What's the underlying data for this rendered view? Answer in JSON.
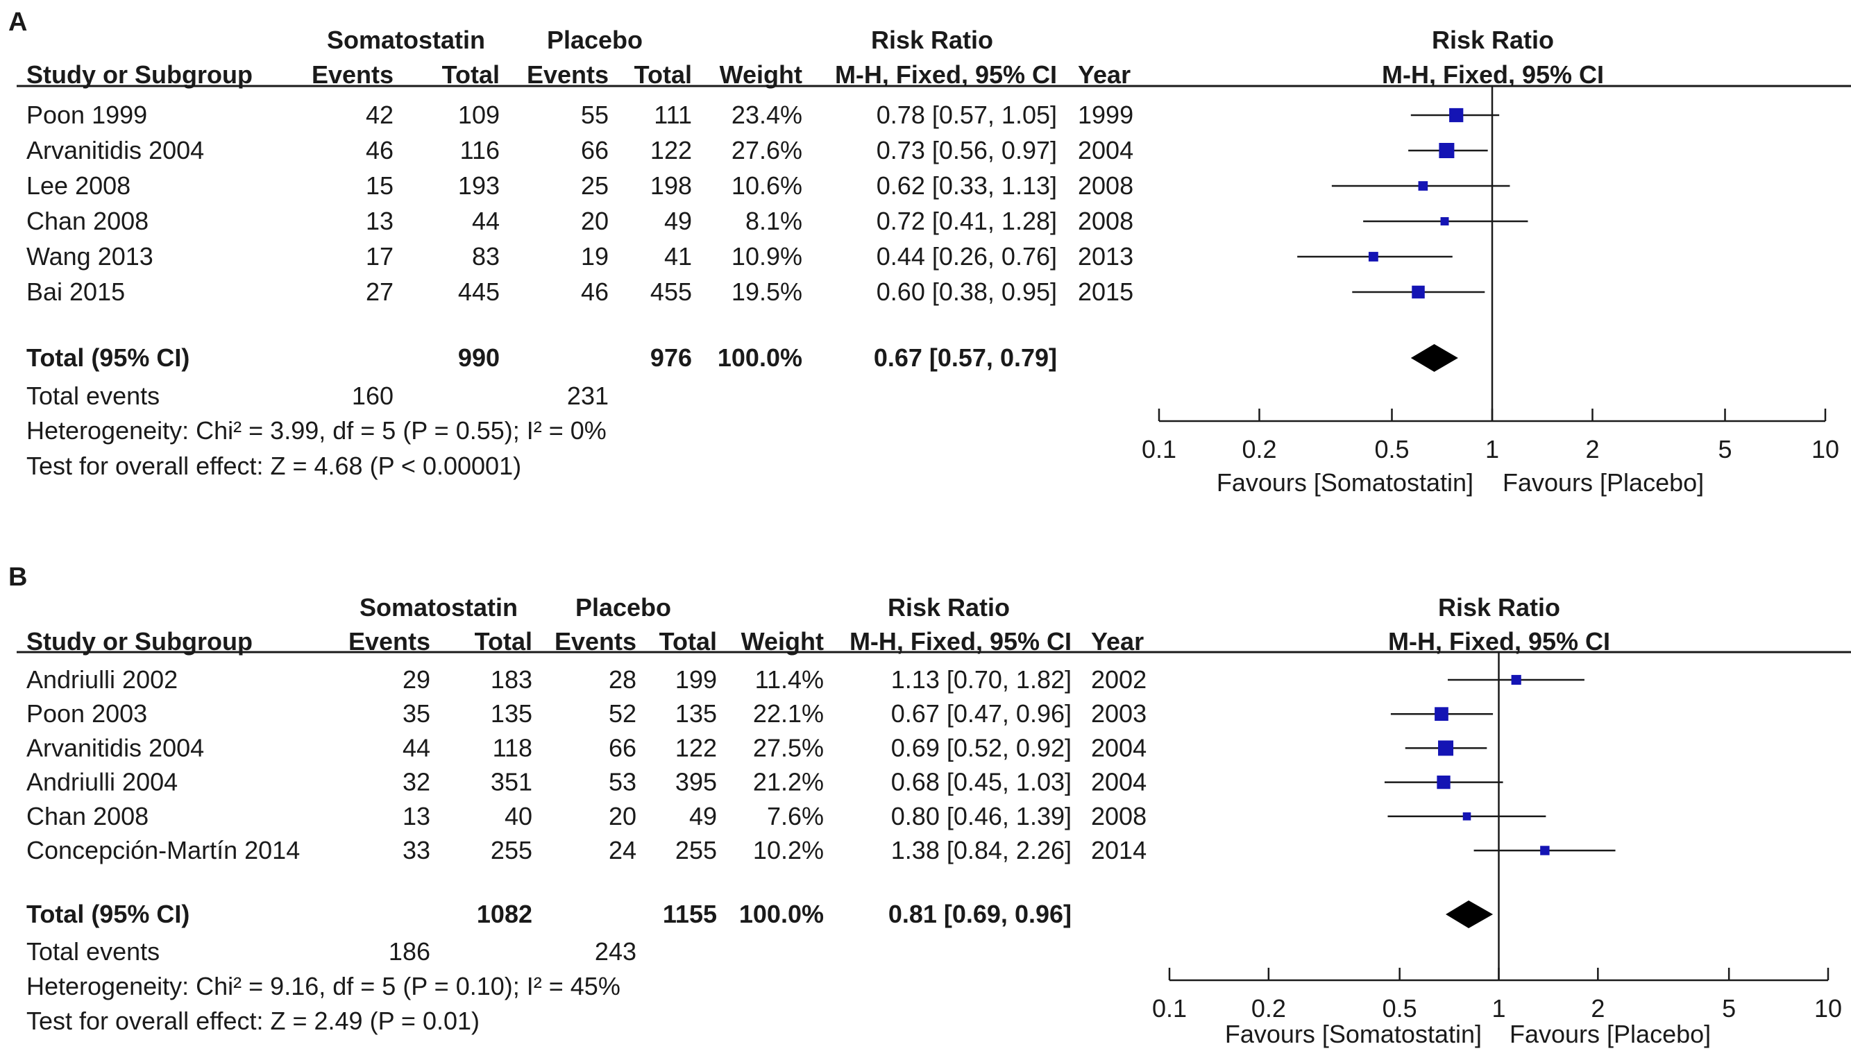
{
  "chart_data": [
    {
      "type": "forest",
      "panel": "A",
      "group_labels": {
        "exp": "Somatostatin",
        "ctl": "Placebo"
      },
      "columns": {
        "study": "Study or Subgroup",
        "events": "Events",
        "total": "Total",
        "weight": "Weight",
        "rr_title": "Risk Ratio",
        "rr_method": "M-H, Fixed, 95% CI",
        "year": "Year"
      },
      "studies": [
        {
          "name": "Poon 1999",
          "e_events": "42",
          "e_total": "109",
          "c_events": "55",
          "c_total": "111",
          "weight": "23.4%",
          "ci_text": "0.78 [0.57, 1.05]",
          "year": "1999",
          "rr": 0.78,
          "lo": 0.57,
          "hi": 1.05,
          "w": 23.4
        },
        {
          "name": "Arvanitidis 2004",
          "e_events": "46",
          "e_total": "116",
          "c_events": "66",
          "c_total": "122",
          "weight": "27.6%",
          "ci_text": "0.73 [0.56, 0.97]",
          "year": "2004",
          "rr": 0.73,
          "lo": 0.56,
          "hi": 0.97,
          "w": 27.6
        },
        {
          "name": "Lee 2008",
          "e_events": "15",
          "e_total": "193",
          "c_events": "25",
          "c_total": "198",
          "weight": "10.6%",
          "ci_text": "0.62 [0.33, 1.13]",
          "year": "2008",
          "rr": 0.62,
          "lo": 0.33,
          "hi": 1.13,
          "w": 10.6
        },
        {
          "name": "Chan 2008",
          "e_events": "13",
          "e_total": "44",
          "c_events": "20",
          "c_total": "49",
          "weight": "8.1%",
          "ci_text": "0.72 [0.41, 1.28]",
          "year": "2008",
          "rr": 0.72,
          "lo": 0.41,
          "hi": 1.28,
          "w": 8.1
        },
        {
          "name": "Wang 2013",
          "e_events": "17",
          "e_total": "83",
          "c_events": "19",
          "c_total": "41",
          "weight": "10.9%",
          "ci_text": "0.44 [0.26, 0.76]",
          "year": "2013",
          "rr": 0.44,
          "lo": 0.26,
          "hi": 0.76,
          "w": 10.9
        },
        {
          "name": "Bai 2015",
          "e_events": "27",
          "e_total": "445",
          "c_events": "46",
          "c_total": "455",
          "weight": "19.5%",
          "ci_text": "0.60 [0.38, 0.95]",
          "year": "2015",
          "rr": 0.6,
          "lo": 0.38,
          "hi": 0.95,
          "w": 19.5
        }
      ],
      "total": {
        "label": "Total (95% CI)",
        "e_total": "990",
        "c_total": "976",
        "weight": "100.0%",
        "ci_text": "0.67 [0.57, 0.79]",
        "rr": 0.67,
        "lo": 0.57,
        "hi": 0.79
      },
      "total_events": {
        "label": "Total events",
        "exp": "160",
        "ctl": "231"
      },
      "heterogeneity": "Heterogeneity: Chi² = 3.99, df = 5 (P = 0.55); I² = 0%",
      "overall_effect": "Test for overall effect: Z = 4.68 (P < 0.00001)",
      "x_scale": "log",
      "xlim": [
        0.1,
        10
      ],
      "ticks": [
        0.1,
        0.2,
        0.5,
        1,
        2,
        5,
        10
      ],
      "tick_labels": [
        "0.1",
        "0.2",
        "0.5",
        "1",
        "2",
        "5",
        "10"
      ],
      "favours_left": "Favours [Somatostatin]",
      "favours_right": "Favours [Placebo]"
    },
    {
      "type": "forest",
      "panel": "B",
      "group_labels": {
        "exp": "Somatostatin",
        "ctl": "Placebo"
      },
      "columns": {
        "study": "Study or Subgroup",
        "events": "Events",
        "total": "Total",
        "weight": "Weight",
        "rr_title": "Risk Ratio",
        "rr_method": "M-H, Fixed, 95% CI",
        "year": "Year"
      },
      "studies": [
        {
          "name": "Andriulli 2002",
          "e_events": "29",
          "e_total": "183",
          "c_events": "28",
          "c_total": "199",
          "weight": "11.4%",
          "ci_text": "1.13 [0.70, 1.82]",
          "year": "2002",
          "rr": 1.13,
          "lo": 0.7,
          "hi": 1.82,
          "w": 11.4
        },
        {
          "name": "Poon 2003",
          "e_events": "35",
          "e_total": "135",
          "c_events": "52",
          "c_total": "135",
          "weight": "22.1%",
          "ci_text": "0.67 [0.47, 0.96]",
          "year": "2003",
          "rr": 0.67,
          "lo": 0.47,
          "hi": 0.96,
          "w": 22.1
        },
        {
          "name": "Arvanitidis 2004",
          "e_events": "44",
          "e_total": "118",
          "c_events": "66",
          "c_total": "122",
          "weight": "27.5%",
          "ci_text": "0.69 [0.52, 0.92]",
          "year": "2004",
          "rr": 0.69,
          "lo": 0.52,
          "hi": 0.92,
          "w": 27.5
        },
        {
          "name": "Andriulli 2004",
          "e_events": "32",
          "e_total": "351",
          "c_events": "53",
          "c_total": "395",
          "weight": "21.2%",
          "ci_text": "0.68 [0.45, 1.03]",
          "year": "2004",
          "rr": 0.68,
          "lo": 0.45,
          "hi": 1.03,
          "w": 21.2
        },
        {
          "name": "Chan 2008",
          "e_events": "13",
          "e_total": "40",
          "c_events": "20",
          "c_total": "49",
          "weight": "7.6%",
          "ci_text": "0.80 [0.46, 1.39]",
          "year": "2008",
          "rr": 0.8,
          "lo": 0.46,
          "hi": 1.39,
          "w": 7.6
        },
        {
          "name": "Concepción-Martín 2014",
          "e_events": "33",
          "e_total": "255",
          "c_events": "24",
          "c_total": "255",
          "weight": "10.2%",
          "ci_text": "1.38 [0.84, 2.26]",
          "year": "2014",
          "rr": 1.38,
          "lo": 0.84,
          "hi": 2.26,
          "w": 10.2
        }
      ],
      "total": {
        "label": "Total (95% CI)",
        "e_total": "1082",
        "c_total": "1155",
        "weight": "100.0%",
        "ci_text": "0.81 [0.69, 0.96]",
        "rr": 0.81,
        "lo": 0.69,
        "hi": 0.96
      },
      "total_events": {
        "label": "Total events",
        "exp": "186",
        "ctl": "243"
      },
      "heterogeneity": "Heterogeneity: Chi² = 9.16, df = 5 (P = 0.10); I² = 45%",
      "overall_effect": "Test for overall effect: Z = 2.49 (P = 0.01)",
      "x_scale": "log",
      "xlim": [
        0.1,
        10
      ],
      "ticks": [
        0.1,
        0.2,
        0.5,
        1,
        2,
        5,
        10
      ],
      "tick_labels": [
        "0.1",
        "0.2",
        "0.5",
        "1",
        "2",
        "5",
        "10"
      ],
      "favours_left": "Favours [Somatostatin]",
      "favours_right": "Favours [Placebo]"
    }
  ],
  "colors": {
    "marker": "#1414b4",
    "ink": "#1a1a1a",
    "diamond": "#000000"
  }
}
